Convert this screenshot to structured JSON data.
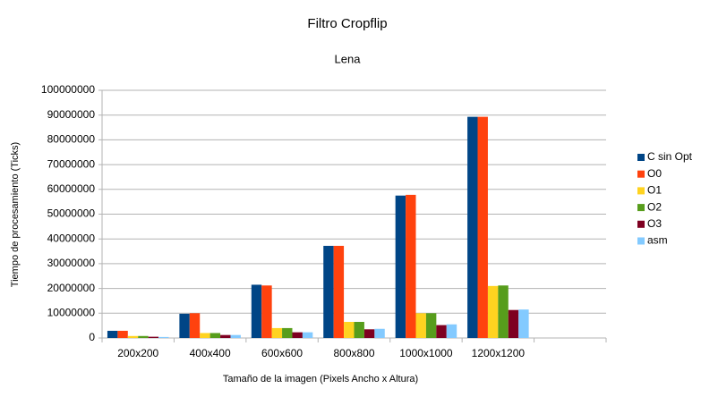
{
  "chart_data": {
    "type": "bar",
    "title": "Filtro Cropflip",
    "subtitle": "Lena",
    "x_label": "Tamaño de la imagen (Pixels Ancho x Altura)",
    "y_label": "Tiempo de procesamiento (Ticks)",
    "categories": [
      "200x200",
      "400x400",
      "600x600",
      "800x800",
      "1000x1000",
      "1200x1200",
      null
    ],
    "series": [
      {
        "name": "C sin Opt",
        "color": "#004586",
        "values": [
          2900000,
          9800000,
          21500000,
          37200000,
          57500000,
          89300000,
          null
        ]
      },
      {
        "name": "O0",
        "color": "#ff420e",
        "values": [
          2900000,
          10000000,
          21200000,
          37200000,
          57800000,
          89300000,
          null
        ]
      },
      {
        "name": "O1",
        "color": "#ffd320",
        "values": [
          800000,
          2000000,
          4000000,
          6500000,
          10000000,
          21000000,
          null
        ]
      },
      {
        "name": "O2",
        "color": "#579d1c",
        "values": [
          800000,
          2000000,
          4000000,
          6500000,
          10000000,
          21200000,
          null
        ]
      },
      {
        "name": "O3",
        "color": "#7e0021",
        "values": [
          500000,
          1200000,
          2300000,
          3500000,
          5200000,
          11300000,
          null
        ]
      },
      {
        "name": "asm",
        "color": "#83caff",
        "values": [
          400000,
          1200000,
          2300000,
          3700000,
          5500000,
          11500000,
          null
        ]
      }
    ],
    "ylim": [
      0,
      100000000
    ],
    "yticks": [
      0,
      10000000,
      20000000,
      30000000,
      40000000,
      50000000,
      60000000,
      70000000,
      80000000,
      90000000,
      100000000
    ],
    "grid": true,
    "legend": "right"
  }
}
